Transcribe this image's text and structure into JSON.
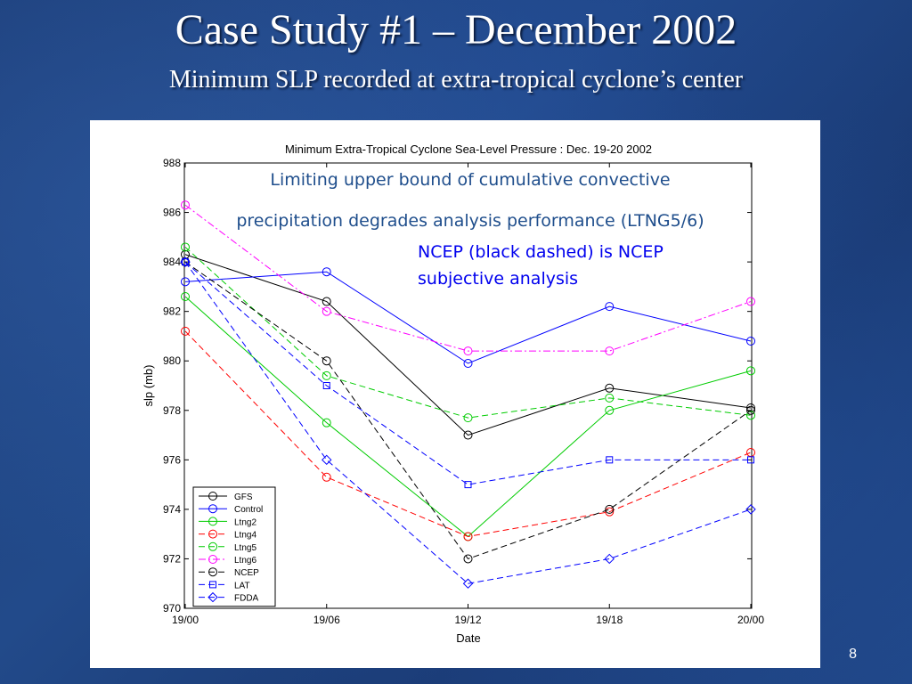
{
  "slide": {
    "title": "Case Study #1 – December 2002",
    "subtitle": "Minimum SLP recorded at extra-tropical cyclone’s center",
    "page_number": "8"
  },
  "annotations": {
    "line1": "Limiting upper bound of cumulative convective",
    "line2": "precipitation degrades analysis performance (LTNG5/6)",
    "ncep_line1": "NCEP (black dashed) is NCEP",
    "ncep_line2": "subjective analysis"
  },
  "chart_data": {
    "type": "line",
    "title": "Minimum Extra-Tropical Cyclone Sea-Level Pressure : Dec. 19-20 2002",
    "xlabel": "Date",
    "ylabel": "slp (mb)",
    "categories": [
      "19/00",
      "19/06",
      "19/12",
      "19/18",
      "20/00"
    ],
    "ylim": [
      970,
      988
    ],
    "yticks": [
      970,
      972,
      974,
      976,
      978,
      980,
      982,
      984,
      986,
      988
    ],
    "grid": false,
    "legend": "bottom-left",
    "series": [
      {
        "name": "GFS",
        "color": "#000000",
        "dash": "solid",
        "marker": "circle",
        "values": [
          984.3,
          982.4,
          977.0,
          978.9,
          978.1
        ]
      },
      {
        "name": "Control",
        "color": "#0000ff",
        "dash": "solid",
        "marker": "circle",
        "values": [
          983.2,
          983.6,
          979.9,
          982.2,
          980.8
        ]
      },
      {
        "name": "Ltng2",
        "color": "#00cc00",
        "dash": "solid",
        "marker": "circle",
        "values": [
          982.6,
          977.5,
          972.9,
          978.0,
          979.6
        ]
      },
      {
        "name": "Ltng4",
        "color": "#ff0000",
        "dash": "dashed",
        "marker": "circle",
        "values": [
          981.2,
          975.3,
          972.9,
          973.9,
          976.3
        ]
      },
      {
        "name": "Ltng5",
        "color": "#00cc00",
        "dash": "dashed",
        "marker": "circle",
        "values": [
          984.6,
          979.4,
          977.7,
          978.5,
          977.8
        ]
      },
      {
        "name": "Ltng6",
        "color": "#ff00ff",
        "dash": "dashdot",
        "marker": "circle",
        "values": [
          986.3,
          982.0,
          980.4,
          980.4,
          982.4
        ]
      },
      {
        "name": "NCEP",
        "color": "#000000",
        "dash": "dashed",
        "marker": "circle",
        "values": [
          984.0,
          980.0,
          972.0,
          974.0,
          978.0
        ]
      },
      {
        "name": "LAT",
        "color": "#0000ff",
        "dash": "dashed",
        "marker": "square",
        "values": [
          984.0,
          979.0,
          975.0,
          976.0,
          976.0
        ]
      },
      {
        "name": "FDDA",
        "color": "#0000ff",
        "dash": "dashed",
        "marker": "diamond",
        "values": [
          984.0,
          976.0,
          971.0,
          972.0,
          974.0
        ]
      }
    ]
  }
}
